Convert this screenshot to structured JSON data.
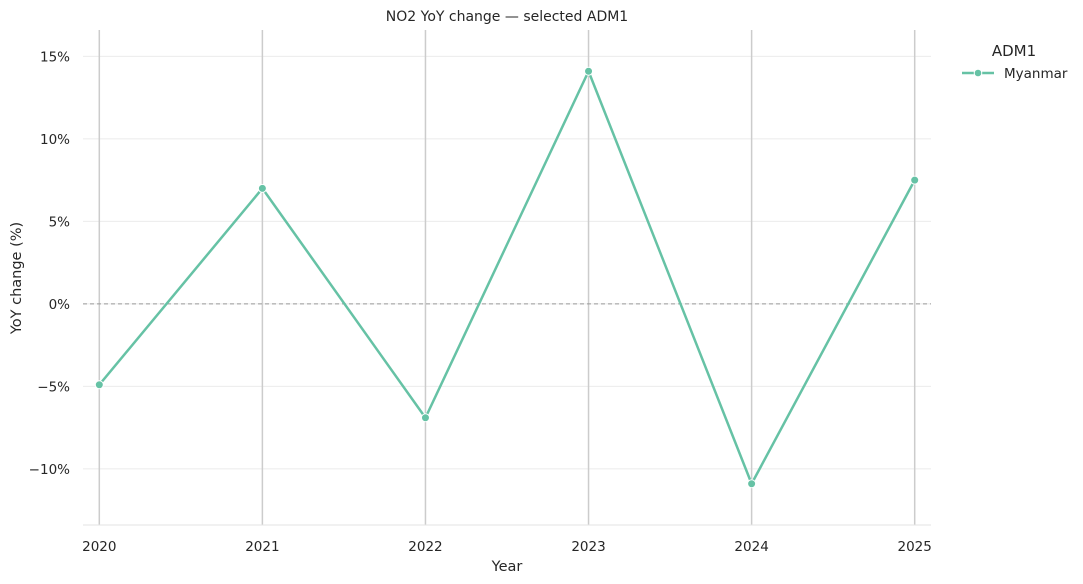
{
  "chart_data": {
    "type": "line",
    "title": "NO2 YoY change — selected ADM1",
    "xlabel": "Year",
    "ylabel": "YoY change (%)",
    "x": [
      2020,
      2021,
      2022,
      2023,
      2024,
      2025
    ],
    "x_tick_labels": [
      "2020",
      "2021",
      "2022",
      "2023",
      "2024",
      "2025"
    ],
    "y_ticks": [
      -10,
      -5,
      0,
      5,
      10,
      15
    ],
    "y_tick_labels": [
      "−10%",
      "−5%",
      "0%",
      "5%",
      "10%",
      "15%"
    ],
    "ylim": [
      -13.4,
      16.6
    ],
    "xlim": [
      2019.9,
      2025.1
    ],
    "grid": true,
    "reference_line_y": 0,
    "legend": {
      "title": "ADM1",
      "placement": "outside-top-right"
    },
    "series": [
      {
        "name": "Myanmar",
        "color": "#66c2a5",
        "marker": "circle",
        "values": [
          -4.9,
          7.0,
          -6.9,
          14.1,
          -10.9,
          7.5
        ]
      }
    ]
  }
}
